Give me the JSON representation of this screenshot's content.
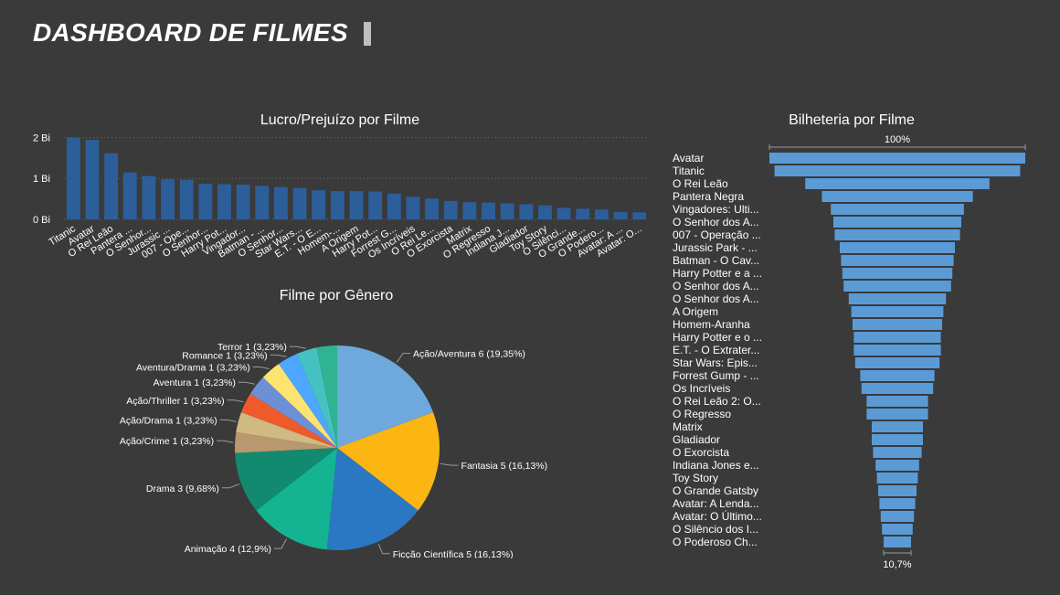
{
  "header": {
    "title": "DASHBOARD DE FILMES"
  },
  "colors": {
    "background": "#3a3a3a",
    "bar": "#2c5e9a",
    "funnel": "#5b9bd5",
    "grid": "#6a6a6a",
    "title_accent": "#bfbfbf"
  },
  "chart_data": [
    {
      "type": "bar",
      "title": "Lucro/Prejuízo por Filme",
      "xlabel": "",
      "ylabel": "",
      "ylim": [
        0,
        2.1
      ],
      "y_ticks": [
        0,
        1,
        2
      ],
      "y_tick_labels": [
        "0 Bi",
        "1 Bi",
        "2 Bi"
      ],
      "grid": "dotted",
      "categories": [
        "Titanic",
        "Avatar",
        "O Rei Leão",
        "Pantera ...",
        "O Senhor...",
        "Jurassic ...",
        "007 - Ope...",
        "O Senhor...",
        "Harry Pot...",
        "Vingador...",
        "Batman - ...",
        "O Senhor...",
        "Star Wars...",
        "E.T. - O E...",
        "Homem-...",
        "A Origem",
        "Harry Pot...",
        "Forrest G...",
        "Os Incríveis",
        "O Rei Le...",
        "O Exorcista",
        "Matrix",
        "O Regresso",
        "Indiana J...",
        "Gladiador",
        "Toy Story",
        "O Silênci...",
        "O Grande...",
        "O Podero...",
        "Avatar: A ...",
        "Avatar: O..."
      ],
      "values": [
        2.0,
        1.94,
        1.62,
        1.15,
        1.06,
        0.98,
        0.97,
        0.87,
        0.86,
        0.85,
        0.82,
        0.79,
        0.77,
        0.71,
        0.69,
        0.69,
        0.68,
        0.63,
        0.55,
        0.51,
        0.45,
        0.42,
        0.41,
        0.39,
        0.37,
        0.34,
        0.28,
        0.26,
        0.24,
        0.18,
        0.17
      ]
    },
    {
      "type": "pie",
      "title": "Filme por Gênero",
      "slices": [
        {
          "label": "Ação/Aventura 6 (19,35%)",
          "value": 6,
          "color": "#6fa8dc"
        },
        {
          "label": "Fantasia 5 (16,13%)",
          "value": 5,
          "color": "#fbb614"
        },
        {
          "label": "Ficção Científica 5 (16,13%)",
          "value": 5,
          "color": "#2b78c2"
        },
        {
          "label": "Animação 4 (12,9%)",
          "value": 4,
          "color": "#14b493"
        },
        {
          "label": "Drama 3 (9,68%)",
          "value": 3,
          "color": "#118a70"
        },
        {
          "label": "Ação/Crime 1 (3,23%)",
          "value": 1,
          "color": "#b8986e"
        },
        {
          "label": "Ação/Drama 1 (3,23%)",
          "value": 1,
          "color": "#d0b982"
        },
        {
          "label": "Ação/Thriller 1 (3,23%)",
          "value": 1,
          "color": "#ef5a2a"
        },
        {
          "label": "Aventura 1 (3,23%)",
          "value": 1,
          "color": "#6d8fd6"
        },
        {
          "label": "Aventura/Drama 1 (3,23%)",
          "value": 1,
          "color": "#fde36f"
        },
        {
          "label": "Romance 1 (3,23%)",
          "value": 1,
          "color": "#4da6ff"
        },
        {
          "label": "Terror 1 (3,23%)",
          "value": 1,
          "color": "#46c1c1"
        },
        {
          "label": "",
          "value": 1,
          "color": "#2fb391"
        }
      ]
    },
    {
      "type": "funnel",
      "title": "Bilheteria por Filme",
      "top_label": "100%",
      "bottom_label": "10,7%",
      "categories": [
        "Avatar",
        "Titanic",
        "O Rei Leão",
        "Pantera Negra",
        "Vingadores: Ulti...",
        "O Senhor dos A...",
        "007 - Operação ...",
        "Jurassic Park - ...",
        "Batman - O Cav...",
        "Harry Potter e a ...",
        "O Senhor dos A...",
        "O Senhor dos A...",
        "A Origem",
        "Homem-Aranha",
        "Harry Potter e o ...",
        "E.T. - O Extrater...",
        "Star Wars: Epis...",
        "Forrest Gump - ...",
        "Os Incríveis",
        "O Rei Leão 2: O...",
        "O Regresso",
        "Matrix",
        "Gladiador",
        "O Exorcista",
        "Indiana Jones e...",
        "Toy Story",
        "O Grande Gatsby",
        "Avatar: A Lenda...",
        "Avatar: O Último...",
        "O Silêncio dos I...",
        "O Poderoso Ch..."
      ],
      "values": [
        100,
        96,
        72,
        59,
        52,
        50,
        49,
        45,
        44,
        43,
        42,
        38,
        36,
        35,
        34,
        34,
        33,
        29,
        28,
        24,
        24,
        20,
        20,
        19,
        17,
        16,
        15,
        14,
        13,
        12,
        10.7
      ]
    }
  ]
}
